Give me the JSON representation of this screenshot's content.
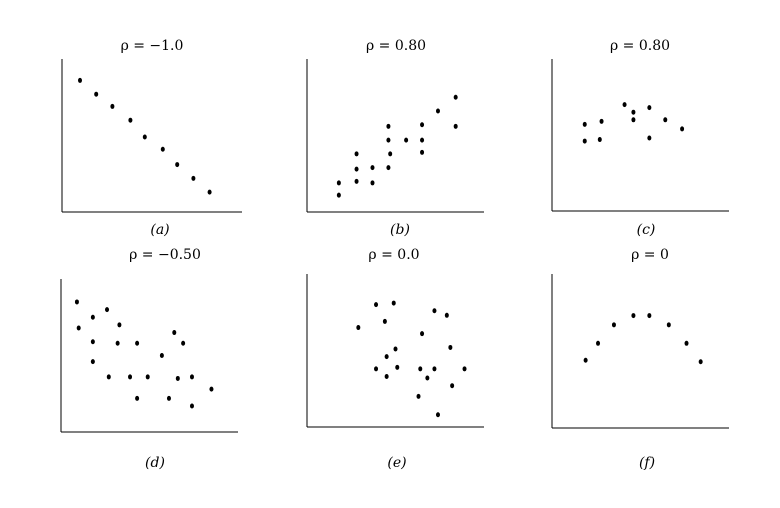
{
  "chart_data": [
    {
      "type": "scatter",
      "title": "ρ = −1.0",
      "caption": "(a)",
      "xlim": [
        0,
        100
      ],
      "ylim": [
        0,
        100
      ],
      "grid": false,
      "axes_ticks": false,
      "points": [
        [
          10,
          86
        ],
        [
          19,
          77
        ],
        [
          28,
          69
        ],
        [
          38,
          60
        ],
        [
          46,
          49
        ],
        [
          56,
          41
        ],
        [
          64,
          31
        ],
        [
          73,
          22
        ],
        [
          82,
          13
        ]
      ]
    },
    {
      "type": "scatter",
      "title": "ρ = 0.80",
      "caption": "(b)",
      "xlim": [
        0,
        100
      ],
      "ylim": [
        0,
        100
      ],
      "grid": false,
      "axes_ticks": false,
      "points": [
        [
          18,
          19
        ],
        [
          18,
          11
        ],
        [
          28,
          38
        ],
        [
          28,
          28
        ],
        [
          28,
          20
        ],
        [
          37,
          29
        ],
        [
          37,
          19
        ],
        [
          46,
          56
        ],
        [
          46,
          47
        ],
        [
          47,
          38
        ],
        [
          46,
          29
        ],
        [
          56,
          47
        ],
        [
          65,
          57
        ],
        [
          65,
          47
        ],
        [
          65,
          39
        ],
        [
          74,
          66
        ],
        [
          84,
          75
        ],
        [
          84,
          56
        ]
      ]
    },
    {
      "type": "scatter",
      "title": "ρ = 0.80",
      "caption": "(c)",
      "xlim": [
        0,
        100
      ],
      "ylim": [
        0,
        100
      ],
      "grid": false,
      "axes_ticks": false,
      "points": [
        [
          18.5,
          57
        ],
        [
          18.5,
          46
        ],
        [
          28,
          59
        ],
        [
          27,
          47
        ],
        [
          41,
          70
        ],
        [
          46,
          65
        ],
        [
          46,
          60
        ],
        [
          55,
          68
        ],
        [
          55,
          48
        ],
        [
          64,
          60
        ],
        [
          73.5,
          54
        ]
      ]
    },
    {
      "type": "scatter",
      "title": "ρ = −0.50",
      "caption": "(d)",
      "xlim": [
        0,
        100
      ],
      "ylim": [
        0,
        100
      ],
      "grid": false,
      "axes_ticks": false,
      "points": [
        [
          9,
          85
        ],
        [
          10,
          68
        ],
        [
          18,
          75
        ],
        [
          18,
          59
        ],
        [
          18,
          46
        ],
        [
          26,
          80
        ],
        [
          33,
          70
        ],
        [
          32,
          58
        ],
        [
          27,
          36
        ],
        [
          39,
          36
        ],
        [
          43,
          58
        ],
        [
          43,
          22
        ],
        [
          49,
          36
        ],
        [
          57,
          50
        ],
        [
          61,
          22
        ],
        [
          64,
          65
        ],
        [
          66,
          35
        ],
        [
          69,
          58
        ],
        [
          74,
          36
        ],
        [
          74,
          17
        ],
        [
          85,
          28
        ]
      ]
    },
    {
      "type": "scatter",
      "title": "ρ = 0.0",
      "caption": "(e)",
      "xlim": [
        0,
        100
      ],
      "ylim": [
        0,
        100
      ],
      "grid": false,
      "axes_ticks": false,
      "points": [
        [
          29,
          65
        ],
        [
          39,
          80
        ],
        [
          49,
          81
        ],
        [
          44,
          69
        ],
        [
          72,
          76
        ],
        [
          79,
          73
        ],
        [
          65,
          61
        ],
        [
          50,
          51
        ],
        [
          45,
          46
        ],
        [
          81,
          52
        ],
        [
          39,
          38
        ],
        [
          51,
          39
        ],
        [
          64,
          38
        ],
        [
          72,
          38
        ],
        [
          89,
          38
        ],
        [
          45,
          33
        ],
        [
          68,
          32
        ],
        [
          82,
          27
        ],
        [
          63,
          20
        ],
        [
          74,
          8
        ]
      ]
    },
    {
      "type": "scatter",
      "title": "ρ = 0",
      "caption": "(f)",
      "xlim": [
        0,
        100
      ],
      "ylim": [
        0,
        100
      ],
      "grid": false,
      "axes_ticks": false,
      "points": [
        [
          19,
          44
        ],
        [
          26,
          55
        ],
        [
          35,
          67
        ],
        [
          46,
          73
        ],
        [
          55,
          73
        ],
        [
          66,
          67
        ],
        [
          76,
          55
        ],
        [
          84,
          43
        ]
      ]
    }
  ]
}
